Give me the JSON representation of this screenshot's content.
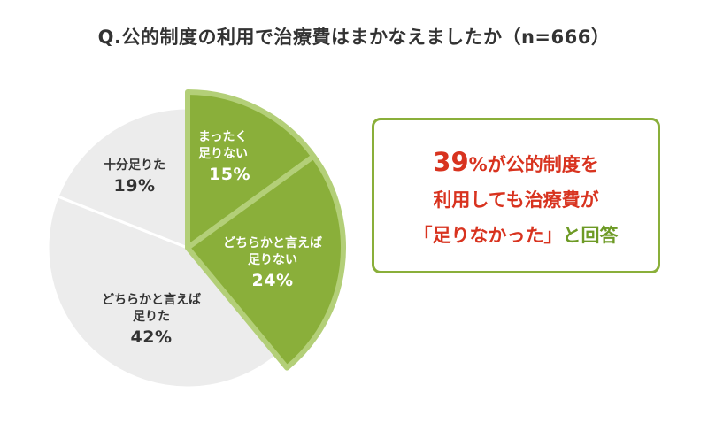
{
  "title": "Q.公的制度の利用で治療費はまかなえましたか（n=666）",
  "colors": {
    "green_fill": "#8aaf3a",
    "green_border": "#b3cf78",
    "grey_fill": "#ececec",
    "accent_red": "#d8331f",
    "accent_green": "#6d9a25"
  },
  "chart_data": {
    "type": "pie",
    "title": "Q.公的制度の利用で治療費はまかなえましたか（n=666）",
    "start": "12 o'clock, clockwise",
    "slices": [
      {
        "label_lines": [
          "まったく",
          "足りない"
        ],
        "value": 15,
        "display": "15%",
        "highlight": true
      },
      {
        "label_lines": [
          "どちらかと言えば",
          "足りない"
        ],
        "value": 24,
        "display": "24%",
        "highlight": true
      },
      {
        "label_lines": [
          "どちらかと言えば",
          "足りた"
        ],
        "value": 42,
        "display": "42%",
        "highlight": false
      },
      {
        "label_lines": [
          "十分足りた"
        ],
        "value": 19,
        "display": "19%",
        "highlight": false
      }
    ]
  },
  "callout": {
    "pct_number": "39",
    "pct_sign": "%",
    "line1_rest": "が公的制度を",
    "line2": "利用しても治療費が",
    "line3_quote": "「足りなかった」",
    "line3_tail": "と回答"
  }
}
